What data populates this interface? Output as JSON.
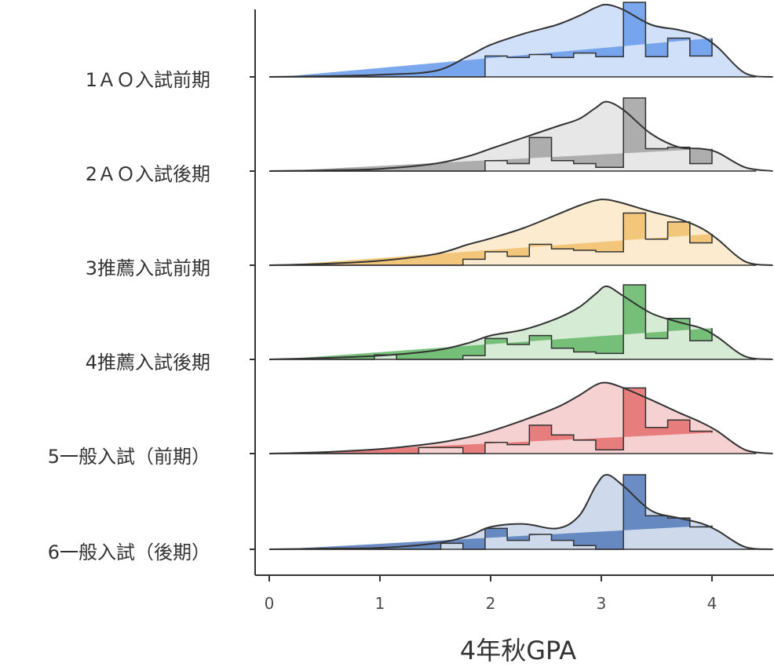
{
  "chart_data": {
    "type": "ridgeline",
    "xlabel": "4年秋GPA",
    "ylabel": "",
    "xlim": [
      -0.1,
      4.55
    ],
    "x_ticks": [
      0,
      1,
      2,
      3,
      4
    ],
    "grid": false,
    "legend": "none",
    "bin_edges": [
      0.1,
      0.35,
      0.55,
      0.75,
      0.95,
      1.15,
      1.35,
      1.55,
      1.75,
      1.95,
      2.15,
      2.35,
      2.55,
      2.75,
      2.95,
      3.2,
      3.4,
      3.6,
      3.8,
      4.0
    ],
    "density_x": [
      0.0,
      0.5,
      1.0,
      1.5,
      1.8,
      2.0,
      2.3,
      2.6,
      2.8,
      2.95,
      3.05,
      3.2,
      3.45,
      3.7,
      3.9,
      4.05,
      4.3,
      4.55
    ],
    "series": [
      {
        "name": "1ＡＯ入試前期",
        "color": "#6d9eeb",
        "fill": "#c9daf8",
        "hist": [
          0,
          0,
          0,
          0,
          0,
          0,
          0,
          0,
          0,
          0.28,
          0.26,
          0.3,
          0.26,
          0.32,
          0.27,
          1.0,
          0.27,
          0.52,
          0.28,
          0.52
        ],
        "density": [
          0,
          0.01,
          0.03,
          0.08,
          0.28,
          0.43,
          0.58,
          0.7,
          0.82,
          0.93,
          0.97,
          0.9,
          0.7,
          0.63,
          0.55,
          0.4,
          0.05,
          0
        ]
      },
      {
        "name": "2ＡＯ入試後期",
        "color": "#a6a6a6",
        "fill": "#e3e3e3",
        "hist": [
          0,
          0,
          0,
          0,
          0,
          0,
          0,
          0,
          0,
          0.14,
          0.1,
          0.45,
          0.14,
          0.1,
          0.05,
          0.98,
          0.3,
          0.32,
          0.1,
          0.3
        ],
        "density": [
          0,
          0.01,
          0.03,
          0.1,
          0.2,
          0.3,
          0.45,
          0.6,
          0.7,
          0.85,
          0.93,
          0.82,
          0.5,
          0.32,
          0.3,
          0.25,
          0.05,
          0
        ]
      },
      {
        "name": "3推薦入試前期",
        "color": "#f1c271",
        "fill": "#fbe7c7",
        "hist": [
          0,
          0,
          0,
          0,
          0,
          0,
          0,
          0,
          0.08,
          0.18,
          0.12,
          0.28,
          0.22,
          0.2,
          0.18,
          0.7,
          0.35,
          0.58,
          0.3,
          0.42
        ],
        "density": [
          0,
          0.02,
          0.06,
          0.15,
          0.28,
          0.36,
          0.5,
          0.68,
          0.8,
          0.87,
          0.88,
          0.83,
          0.72,
          0.62,
          0.5,
          0.35,
          0.05,
          0
        ]
      },
      {
        "name": "4推薦入試後期",
        "color": "#6aba6f",
        "fill": "#cfe8cc",
        "hist": [
          0,
          0,
          0,
          0,
          0.06,
          0,
          0,
          0,
          0.05,
          0.28,
          0.2,
          0.32,
          0.15,
          0.1,
          0.08,
          1.0,
          0.28,
          0.55,
          0.25,
          0.42
        ],
        "density": [
          0,
          0.02,
          0.05,
          0.12,
          0.22,
          0.32,
          0.4,
          0.55,
          0.7,
          0.88,
          0.98,
          0.85,
          0.62,
          0.5,
          0.42,
          0.3,
          0.04,
          0
        ]
      },
      {
        "name": "5一般入試（前期）",
        "color": "#e57373",
        "fill": "#f4c9c9",
        "hist": [
          0,
          0,
          0,
          0,
          0,
          0,
          0.08,
          0.08,
          0,
          0.15,
          0.12,
          0.38,
          0.25,
          0.18,
          0.05,
          0.88,
          0.35,
          0.45,
          0.3,
          0.28
        ],
        "density": [
          0,
          0.02,
          0.06,
          0.14,
          0.22,
          0.3,
          0.45,
          0.62,
          0.78,
          0.92,
          0.95,
          0.88,
          0.72,
          0.55,
          0.42,
          0.3,
          0.05,
          0
        ]
      },
      {
        "name": "6一般入試（後期）",
        "color": "#5b7fbe",
        "fill": "#c6d3e8",
        "hist": [
          0,
          0,
          0,
          0,
          0,
          0,
          0,
          0.08,
          0,
          0.28,
          0.12,
          0.2,
          0.12,
          0.05,
          0,
          1.0,
          0.45,
          0.42,
          0.3,
          0.32
        ],
        "density": [
          0,
          0.01,
          0.02,
          0.08,
          0.18,
          0.3,
          0.34,
          0.28,
          0.45,
          0.85,
          1.0,
          0.85,
          0.52,
          0.42,
          0.35,
          0.25,
          0.03,
          0
        ]
      }
    ]
  }
}
